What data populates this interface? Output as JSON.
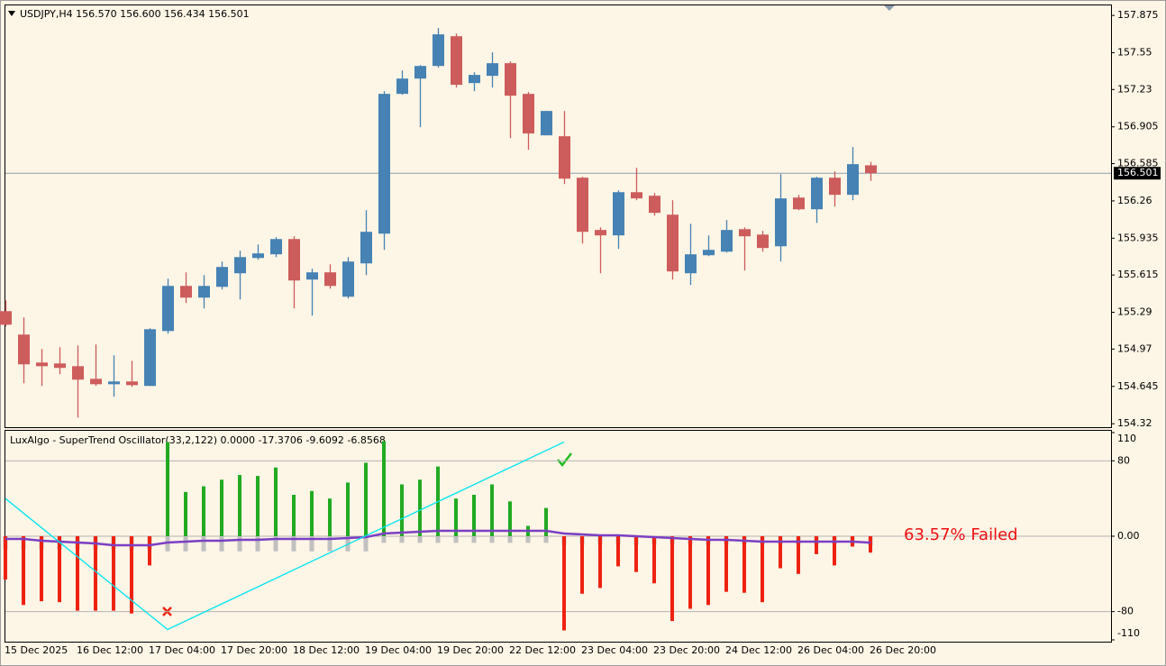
{
  "chart_data": [
    {
      "type": "candlestick",
      "title": "USDJPY,H4  156.570 156.600 156.434 156.501",
      "categories": [
        "15 Dec 2025",
        null,
        null,
        null,
        "16 Dec 12:00",
        null,
        null,
        null,
        "17 Dec 04:00",
        null,
        null,
        null,
        "17 Dec 20:00",
        null,
        null,
        null,
        "18 Dec 12:00",
        null,
        null,
        null,
        "19 Dec 04:00",
        null,
        null,
        null,
        "19 Dec 20:00",
        null,
        null,
        null,
        "22 Dec 12:00",
        null,
        null,
        null,
        "23 Dec 04:00",
        null,
        null,
        null,
        "23 Dec 20:00",
        null,
        null,
        null,
        "24 Dec 12:00",
        null,
        null,
        null,
        "26 Dec 04:00",
        null,
        null,
        null,
        "26 Dec 20:00"
      ],
      "open": [
        155.3,
        155.096,
        154.853,
        154.845,
        154.821,
        154.711,
        154.664,
        154.688,
        154.649,
        155.127,
        155.52,
        155.418,
        155.512,
        155.63,
        155.763,
        155.795,
        155.928,
        155.575,
        155.638,
        155.426,
        155.716,
        155.975,
        157.192,
        157.325,
        157.435,
        157.694,
        157.286,
        157.349,
        157.459,
        157.192,
        156.831,
        156.823,
        156.462,
        156.007,
        155.96,
        156.336,
        156.305,
        156.14,
        155.63,
        155.787,
        155.818,
        156.014,
        155.967,
        155.865,
        156.289,
        156.187,
        156.462,
        156.313,
        156.57
      ],
      "high": [
        155.394,
        155.245,
        154.971,
        154.986,
        155.002,
        155.01,
        154.916,
        154.868,
        155.151,
        155.583,
        155.638,
        155.614,
        155.732,
        155.826,
        155.881,
        155.944,
        155.952,
        155.669,
        155.708,
        155.771,
        156.179,
        157.216,
        157.396,
        157.443,
        157.765,
        157.718,
        157.38,
        157.553,
        157.475,
        157.208,
        157.043,
        157.043,
        156.47,
        156.03,
        156.352,
        156.548,
        156.329,
        156.266,
        156.061,
        155.96,
        156.093,
        156.03,
        155.999,
        156.493,
        156.313,
        156.47,
        156.517,
        156.729,
        156.6
      ],
      "low": [
        155.167,
        154.672,
        154.649,
        154.751,
        154.374,
        154.649,
        154.555,
        154.641,
        154.649,
        155.104,
        155.371,
        155.324,
        155.489,
        155.402,
        155.748,
        155.771,
        155.324,
        155.261,
        155.496,
        155.41,
        155.614,
        155.834,
        157.184,
        156.902,
        157.42,
        157.247,
        157.216,
        157.247,
        156.807,
        156.705,
        156.831,
        156.407,
        155.889,
        155.63,
        155.842,
        156.266,
        156.132,
        155.575,
        155.528,
        155.779,
        155.811,
        155.654,
        155.818,
        155.732,
        156.179,
        156.069,
        156.211,
        156.266,
        156.434
      ],
      "close": [
        155.182,
        154.837,
        154.821,
        154.806,
        154.704,
        154.664,
        154.688,
        154.656,
        155.143,
        155.52,
        155.418,
        155.52,
        155.685,
        155.771,
        155.803,
        155.928,
        155.567,
        155.638,
        155.52,
        155.732,
        155.991,
        157.192,
        157.325,
        157.435,
        157.71,
        157.271,
        157.357,
        157.459,
        157.176,
        156.847,
        157.043,
        156.454,
        155.991,
        155.96,
        156.336,
        156.282,
        156.156,
        155.646,
        155.795,
        155.834,
        156.007,
        155.952,
        155.85,
        156.282,
        156.187,
        156.462,
        156.313,
        156.58,
        156.501
      ],
      "up_color": "#4682b4",
      "down_color": "#cd5c5c",
      "last_price": 156.501,
      "last_price_color": "#8c9db0",
      "ylim": [
        154.29,
        157.97
      ],
      "yticks": [
        157.875,
        157.55,
        157.23,
        156.905,
        156.585,
        156.26,
        155.935,
        155.615,
        155.29,
        154.97,
        154.645,
        154.32
      ]
    },
    {
      "type": "oscillator",
      "title": "LuxAlgo - SuperTrend Oscillator(33,2,122) 0.0000 -17.3706 -9.6092 -6.8568",
      "histogram": {
        "values": [
          -46,
          -73,
          -69,
          -70,
          -79,
          -79,
          -79,
          -82,
          -31,
          100,
          47,
          53,
          60,
          65,
          64,
          73,
          44,
          48,
          40,
          57,
          78,
          101,
          55,
          60,
          74,
          40,
          44,
          55,
          37,
          11,
          30,
          -100,
          -61,
          -55,
          -32,
          -38,
          -50,
          -90,
          -77,
          -73,
          -59,
          -60,
          -70,
          -34,
          -40,
          -19,
          -31,
          -11,
          -17.3706
        ],
        "up_color": "#22aa22",
        "down_color": "#ee2211"
      },
      "shadow": {
        "values": [
          -14,
          -14,
          -14,
          -14,
          -14,
          -14,
          -14,
          -14,
          -14,
          -16,
          -16,
          -16,
          -16,
          -16,
          -16,
          -16,
          -16,
          -16,
          -16,
          -16,
          -16,
          -7,
          -7,
          -7,
          -7,
          -7,
          -7,
          -7,
          -7,
          -7,
          -7,
          -9,
          -9,
          -9,
          -9,
          -9,
          -9,
          -9,
          -9,
          -9,
          -9,
          -9,
          -9,
          -9,
          -9,
          -9,
          -9,
          -9,
          -9.6092
        ],
        "color": "#c0c0c0"
      },
      "signal": {
        "values": [
          -2.9,
          -2.9,
          -4.8,
          -5.7,
          -6.7,
          -7.7,
          -9.6,
          -9.6,
          -9.6,
          -6.7,
          -5.7,
          -4.8,
          -4.8,
          -3.8,
          -3.8,
          -2.9,
          -2.9,
          -2.9,
          -2.9,
          -1.9,
          -1.0,
          2.9,
          3.8,
          4.8,
          5.7,
          5.7,
          5.7,
          5.7,
          5.7,
          5.7,
          5.7,
          2.9,
          1.9,
          1.0,
          1.0,
          0,
          -1.0,
          -1.9,
          -2.9,
          -3.8,
          -3.8,
          -4.8,
          -5.7,
          -5.7,
          -5.7,
          -5.7,
          -5.7,
          -5.7,
          -6.8568
        ],
        "color": "#7b3fc4"
      },
      "zigzag": {
        "x": [
          0,
          9,
          31
        ],
        "values": [
          40,
          -99,
          100
        ],
        "color": "#00e5ee"
      },
      "annotation": {
        "text": "63.57% Failed",
        "color": "#ee1111"
      },
      "ylim": [
        -110,
        110
      ],
      "yticks": [
        110,
        80,
        {
          "value": 0,
          "label": "0.00"
        },
        -80,
        -110
      ]
    }
  ]
}
